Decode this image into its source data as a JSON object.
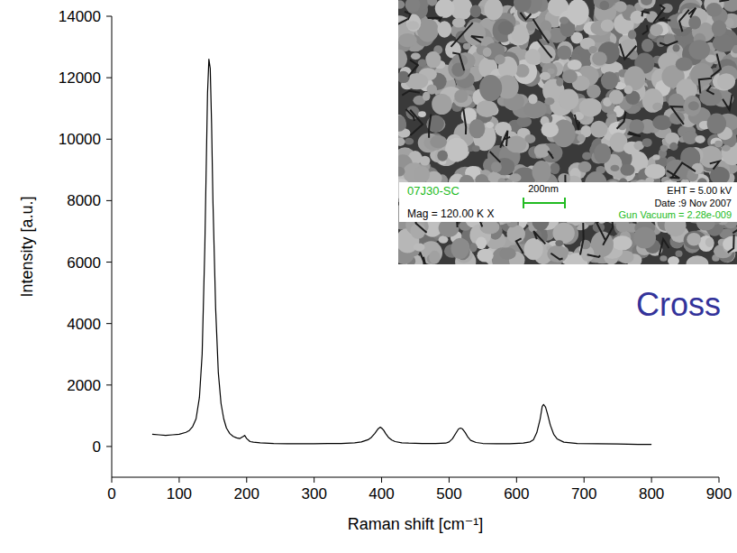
{
  "chart_data": {
    "type": "line",
    "x_label": "Raman shift [cm⁻¹]",
    "y_label": "Intensity [a.u.]",
    "annotation": "Cross",
    "inset_texts": {
      "sample": "07J30-SC",
      "scale_bar": "200nm",
      "magnification": "Mag = 120.00 K X",
      "eht": "EHT = 5.00 kV",
      "date": "Date :9 Nov 2007",
      "vacuum": "Gun Vacuum = 2.28e-009"
    },
    "color": "#000000",
    "x": [
      60,
      70,
      80,
      90,
      100,
      110,
      115,
      120,
      125,
      130,
      134,
      138,
      140,
      142,
      144,
      146,
      148,
      150,
      154,
      158,
      162,
      166,
      170,
      175,
      180,
      185,
      190,
      195,
      197,
      200,
      205,
      210,
      220,
      240,
      260,
      280,
      300,
      320,
      340,
      360,
      370,
      380,
      385,
      390,
      395,
      398,
      400,
      403,
      406,
      410,
      415,
      420,
      430,
      440,
      460,
      480,
      495,
      500,
      505,
      510,
      514,
      517,
      520,
      524,
      528,
      532,
      540,
      550,
      570,
      590,
      610,
      620,
      625,
      630,
      635,
      638,
      640,
      643,
      646,
      650,
      655,
      660,
      670,
      690,
      720,
      750,
      780,
      800
    ],
    "values": [
      400,
      380,
      360,
      380,
      400,
      460,
      520,
      650,
      900,
      1600,
      3000,
      6500,
      9000,
      11500,
      12600,
      12300,
      10500,
      8000,
      4500,
      2400,
      1400,
      900,
      600,
      420,
      330,
      280,
      260,
      330,
      360,
      260,
      160,
      140,
      120,
      100,
      90,
      90,
      90,
      95,
      100,
      120,
      150,
      220,
      300,
      430,
      580,
      630,
      600,
      530,
      420,
      300,
      210,
      160,
      120,
      110,
      100,
      100,
      110,
      150,
      250,
      430,
      570,
      600,
      570,
      450,
      300,
      200,
      130,
      100,
      90,
      90,
      110,
      150,
      220,
      450,
      900,
      1300,
      1370,
      1280,
      1050,
      700,
      400,
      250,
      140,
      100,
      90,
      80,
      70,
      70
    ],
    "xlim": [
      0,
      900
    ],
    "ylim": [
      -1000,
      14000
    ],
    "xticks": [
      0,
      100,
      200,
      300,
      400,
      500,
      600,
      700,
      800,
      900
    ],
    "yticks": [
      0,
      2000,
      4000,
      6000,
      8000,
      10000,
      12000,
      14000
    ],
    "grid": false
  }
}
